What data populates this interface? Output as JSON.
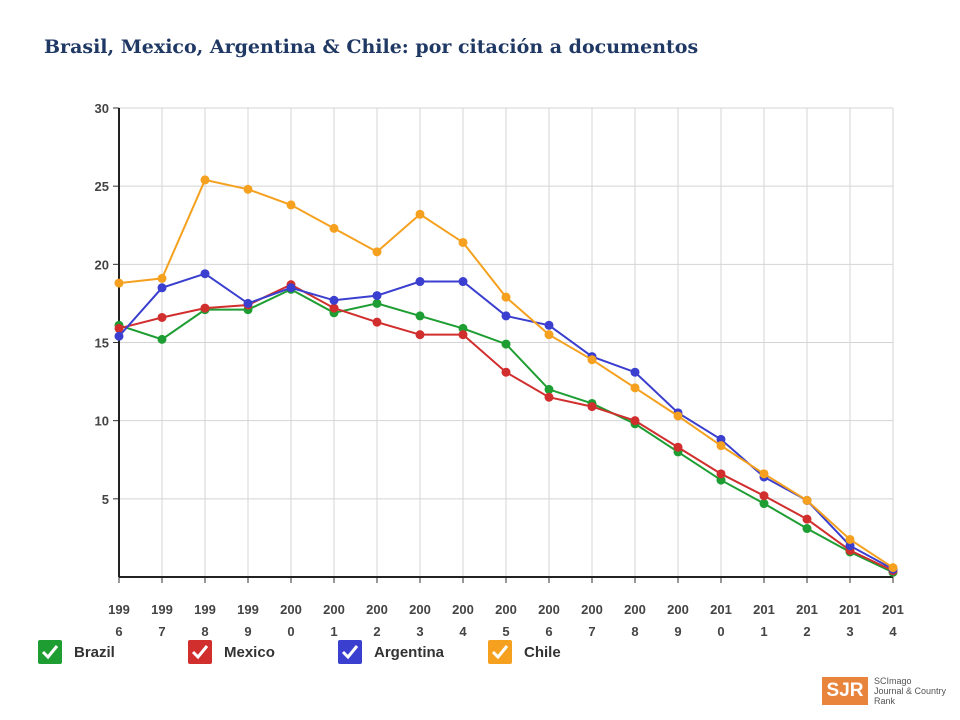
{
  "title": "Brasil, Mexico, Argentina & Chile: por citación a documentos",
  "chart_data": {
    "type": "line",
    "title": "",
    "xlabel": "",
    "ylabel": "",
    "ylim": [
      0,
      30
    ],
    "yticks": [
      "5",
      "10",
      "15",
      "20",
      "25",
      "30"
    ],
    "x": [
      "1996",
      "1997",
      "1998",
      "1999",
      "2000",
      "2001",
      "2002",
      "2003",
      "2004",
      "2005",
      "2006",
      "2007",
      "2008",
      "2009",
      "2010",
      "2011",
      "2012",
      "2013",
      "2014"
    ],
    "xtick_labels": [
      [
        "199",
        "6"
      ],
      [
        "199",
        "7"
      ],
      [
        "199",
        "8"
      ],
      [
        "199",
        "9"
      ],
      [
        "200",
        "0"
      ],
      [
        "200",
        "1"
      ],
      [
        "200",
        "2"
      ],
      [
        "200",
        "3"
      ],
      [
        "200",
        "4"
      ],
      [
        "200",
        "5"
      ],
      [
        "200",
        "6"
      ],
      [
        "200",
        "7"
      ],
      [
        "200",
        "8"
      ],
      [
        "200",
        "9"
      ],
      [
        "201",
        "0"
      ],
      [
        "201",
        "1"
      ],
      [
        "201",
        "2"
      ],
      [
        "201",
        "3"
      ],
      [
        "201",
        "4"
      ]
    ],
    "grid": true,
    "legend_position": "bottom",
    "series": [
      {
        "name": "Brazil",
        "color": "#1e9e32",
        "values": [
          16.1,
          15.2,
          17.1,
          17.1,
          18.4,
          16.9,
          17.5,
          16.7,
          15.9,
          14.9,
          12.0,
          11.1,
          9.8,
          8.0,
          6.2,
          4.7,
          3.1,
          1.6,
          0.3
        ]
      },
      {
        "name": "Mexico",
        "color": "#d12e2e",
        "values": [
          15.9,
          16.6,
          17.2,
          17.4,
          18.7,
          17.2,
          16.3,
          15.5,
          15.5,
          13.1,
          11.5,
          10.9,
          10.0,
          8.3,
          6.6,
          5.2,
          3.7,
          1.7,
          0.4
        ]
      },
      {
        "name": "Argentina",
        "color": "#3a3fcf",
        "values": [
          15.4,
          18.5,
          19.4,
          17.5,
          18.5,
          17.7,
          18.0,
          18.9,
          18.9,
          16.7,
          16.1,
          14.1,
          13.1,
          10.5,
          8.8,
          6.4,
          4.9,
          2.0,
          0.5
        ]
      },
      {
        "name": "Chile",
        "color": "#f5a11f",
        "values": [
          18.8,
          19.1,
          25.4,
          24.8,
          23.8,
          22.3,
          20.8,
          23.2,
          21.4,
          17.9,
          15.5,
          13.9,
          12.1,
          10.3,
          8.4,
          6.6,
          4.9,
          2.4,
          0.6
        ]
      }
    ]
  },
  "logo": {
    "mark": "SJR",
    "line1": "SCImago",
    "line2": "Journal & Country",
    "line3": "Rank"
  }
}
